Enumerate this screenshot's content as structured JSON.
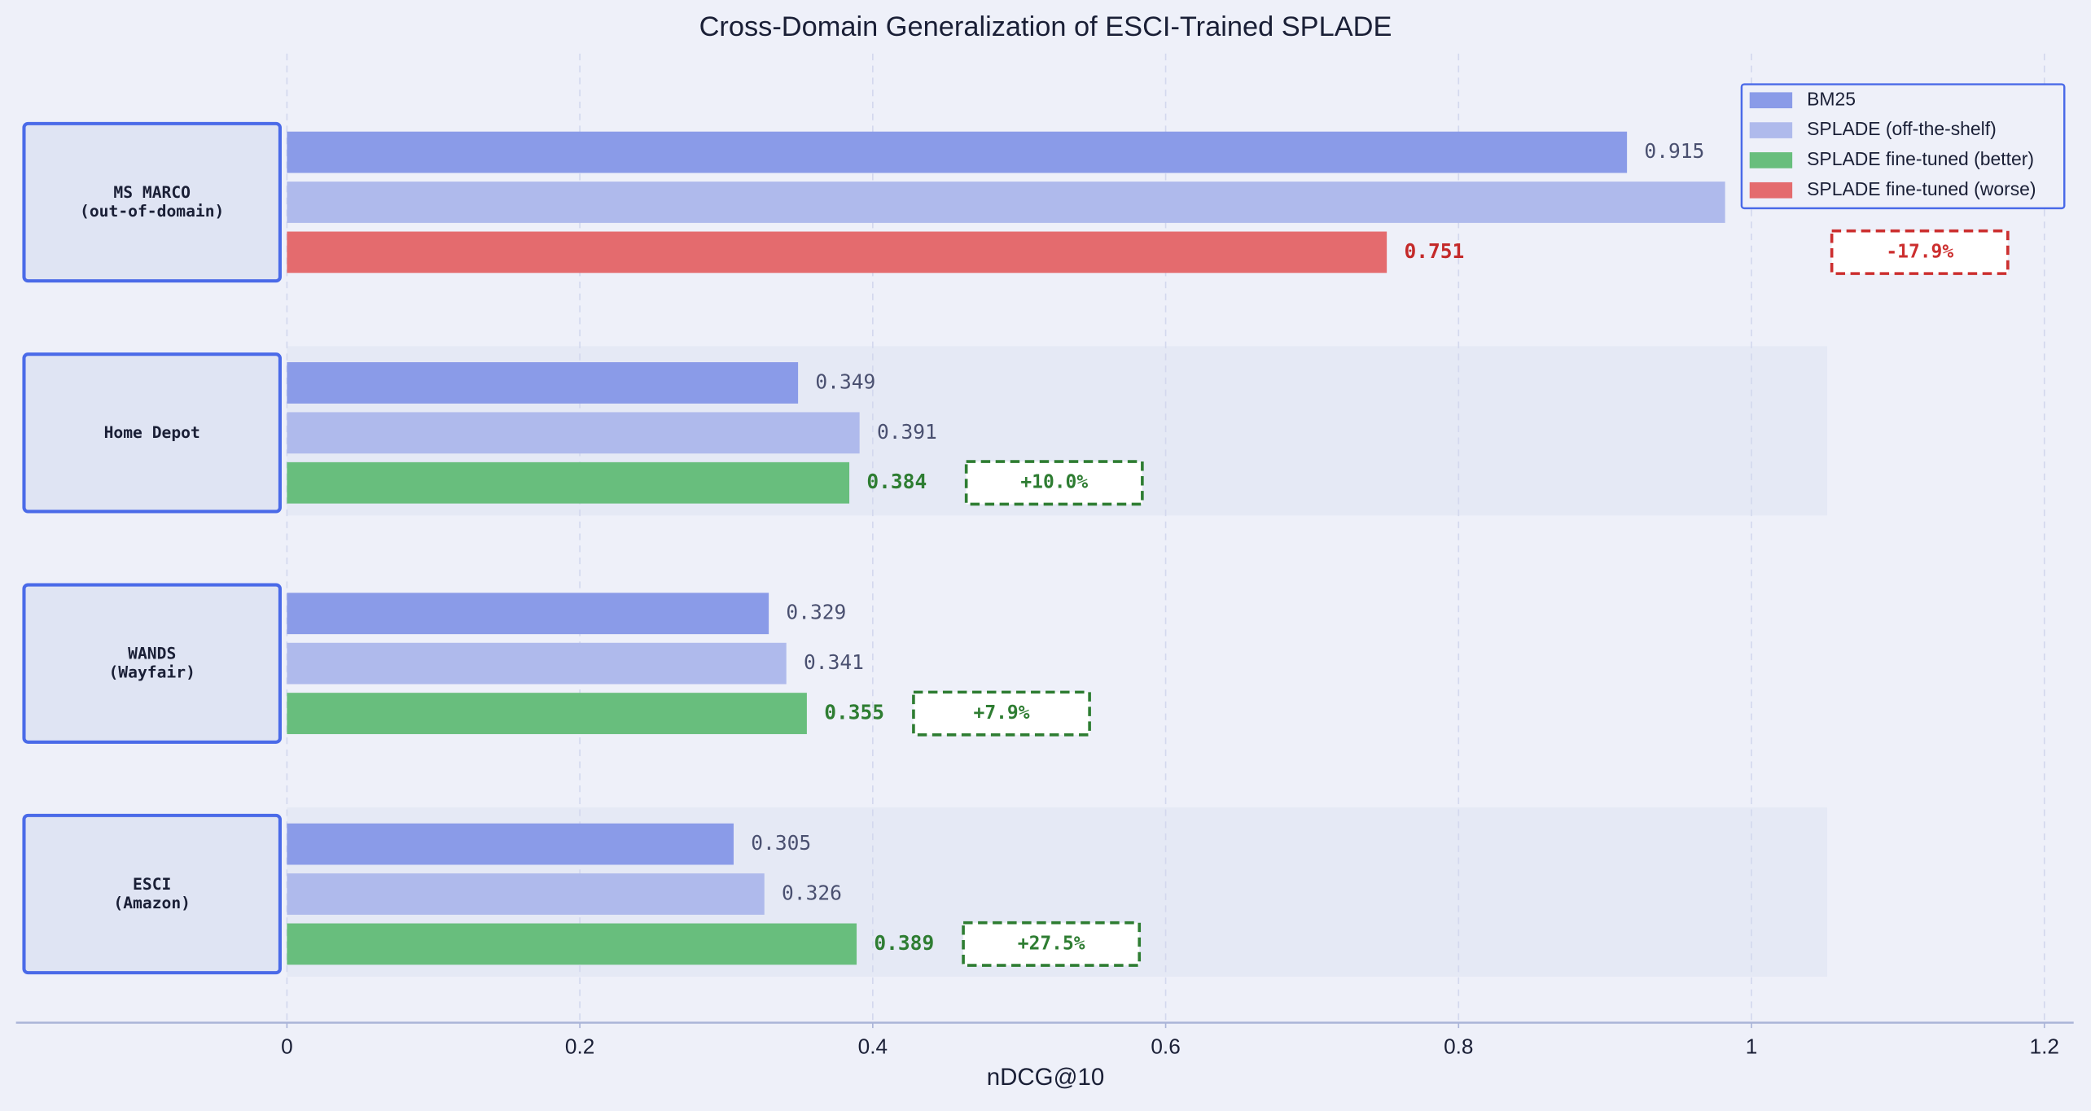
{
  "chart_data": {
    "type": "bar",
    "orientation": "horizontal",
    "title": "Cross-Domain Generalization of ESCI-Trained SPLADE",
    "x_label": "nDCG@10",
    "categories": [
      "MS MARCO\n(out-of-domain)",
      "Home Depot",
      "WANDS\n(Wayfair)",
      "ESCI\n(Amazon)"
    ],
    "series": [
      {
        "name": "BM25",
        "color": "#8a9be8",
        "values": [
          0.915,
          0.349,
          0.329,
          0.305
        ]
      },
      {
        "name": "SPLADE (off-the-shelf)",
        "color": "#afbaec",
        "values": [
          0.982,
          0.391,
          0.341,
          0.326
        ]
      },
      {
        "colors": [
          "#e46b6e",
          "#68be7d",
          "#68be7d",
          "#68be7d"
        ],
        "values": [
          0.751,
          0.384,
          0.355,
          0.389
        ]
      }
    ],
    "legend_entries": [
      {
        "name": "BM25",
        "color": "#8a9be8"
      },
      {
        "name": "SPLADE (off-the-shelf)",
        "color": "#afbaec"
      },
      {
        "name": "SPLADE fine-tuned (better)",
        "color": "#68be7d"
      },
      {
        "name": "SPLADE fine-tuned (worse)",
        "color": "#e46b6e"
      }
    ],
    "annotations": [
      "-17.9%",
      "+10.0%",
      "+7.9%",
      "+27.5%"
    ],
    "xlim": [
      -0.185,
      1.22
    ],
    "xticks": [
      0.0,
      0.2,
      0.4,
      0.6,
      0.8,
      1.0,
      1.2
    ],
    "grid": true,
    "legend": "upper right"
  }
}
